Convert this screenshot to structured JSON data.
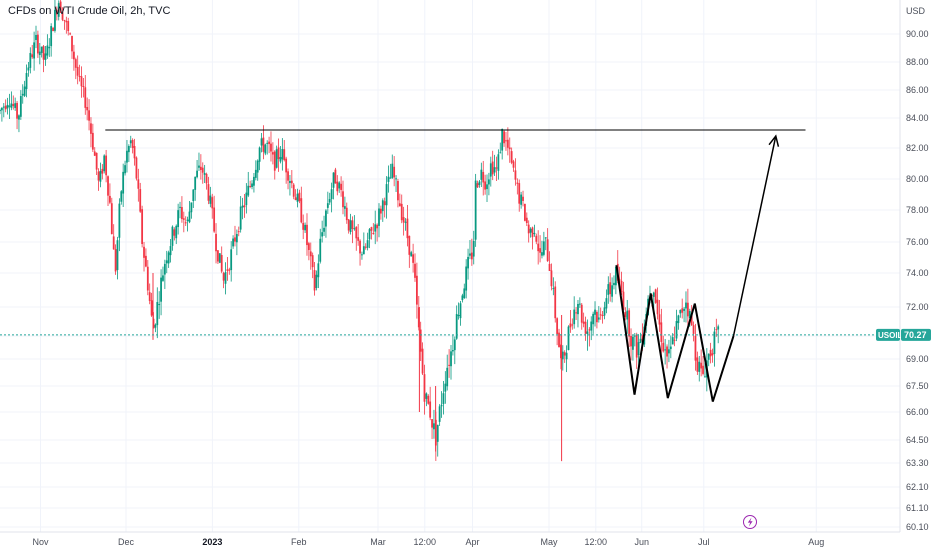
{
  "chart_data": {
    "type": "candlestick",
    "title": "CFDs on WTI Crude Oil, 2h, TVC",
    "currency": "USD",
    "y_ticks": [
      60.1,
      61.1,
      62.1,
      63.3,
      64.5,
      66.0,
      67.5,
      69.0,
      70.2,
      72.0,
      74.0,
      76.0,
      78.0,
      80.0,
      82.0,
      84.0,
      86.0,
      88.0,
      90.0
    ],
    "y_tick_labels": [
      "60.10",
      "61.10",
      "62.10",
      "63.30",
      "64.50",
      "66.00",
      "67.50",
      "69.00",
      "70.20",
      "72.00",
      "74.00",
      "76.00",
      "78.00",
      "80.00",
      "82.00",
      "84.00",
      "86.00",
      "88.00",
      "90.00"
    ],
    "x_labels": [
      {
        "label": "Nov",
        "pos": 0.045,
        "bold": false
      },
      {
        "label": "Dec",
        "pos": 0.14,
        "bold": false
      },
      {
        "label": "2023",
        "pos": 0.236,
        "bold": true
      },
      {
        "label": "Feb",
        "pos": 0.332,
        "bold": false
      },
      {
        "label": "Mar",
        "pos": 0.42,
        "bold": false
      },
      {
        "label": "12:00",
        "pos": 0.472,
        "bold": false
      },
      {
        "label": "Apr",
        "pos": 0.525,
        "bold": false
      },
      {
        "label": "May",
        "pos": 0.61,
        "bold": false
      },
      {
        "label": "12:00",
        "pos": 0.662,
        "bold": false
      },
      {
        "label": "Jun",
        "pos": 0.713,
        "bold": false
      },
      {
        "label": "Jul",
        "pos": 0.782,
        "bold": false
      },
      {
        "label": "Aug",
        "pos": 0.907,
        "bold": false
      }
    ],
    "price_path": [
      [
        0.0,
        84.5
      ],
      [
        0.01,
        85.5
      ],
      [
        0.02,
        84.0
      ],
      [
        0.03,
        87.5
      ],
      [
        0.04,
        89.5
      ],
      [
        0.05,
        88.0
      ],
      [
        0.058,
        90.5
      ],
      [
        0.065,
        92.5
      ],
      [
        0.072,
        91.0
      ],
      [
        0.08,
        89.0
      ],
      [
        0.088,
        86.5
      ],
      [
        0.096,
        85.0
      ],
      [
        0.104,
        82.0
      ],
      [
        0.11,
        79.5
      ],
      [
        0.116,
        81.5
      ],
      [
        0.122,
        78.5
      ],
      [
        0.128,
        74.0
      ],
      [
        0.134,
        79.0
      ],
      [
        0.14,
        81.5
      ],
      [
        0.146,
        82.5
      ],
      [
        0.152,
        80.0
      ],
      [
        0.158,
        76.0
      ],
      [
        0.164,
        73.5
      ],
      [
        0.17,
        70.5
      ],
      [
        0.176,
        72.5
      ],
      [
        0.184,
        75.0
      ],
      [
        0.192,
        76.5
      ],
      [
        0.2,
        78.0
      ],
      [
        0.208,
        77.0
      ],
      [
        0.216,
        80.0
      ],
      [
        0.224,
        80.8
      ],
      [
        0.232,
        79.0
      ],
      [
        0.24,
        76.0
      ],
      [
        0.248,
        73.5
      ],
      [
        0.256,
        75.0
      ],
      [
        0.264,
        77.0
      ],
      [
        0.272,
        78.5
      ],
      [
        0.28,
        80.0
      ],
      [
        0.288,
        82.0
      ],
      [
        0.296,
        82.3
      ],
      [
        0.304,
        81.0
      ],
      [
        0.312,
        81.8
      ],
      [
        0.32,
        80.5
      ],
      [
        0.328,
        79.0
      ],
      [
        0.336,
        77.5
      ],
      [
        0.344,
        75.0
      ],
      [
        0.35,
        73.0
      ],
      [
        0.356,
        76.0
      ],
      [
        0.364,
        78.5
      ],
      [
        0.372,
        80.2
      ],
      [
        0.38,
        79.0
      ],
      [
        0.388,
        77.0
      ],
      [
        0.396,
        76.0
      ],
      [
        0.404,
        75.2
      ],
      [
        0.412,
        76.5
      ],
      [
        0.42,
        77.5
      ],
      [
        0.428,
        79.0
      ],
      [
        0.436,
        80.5
      ],
      [
        0.442,
        79.0
      ],
      [
        0.448,
        77.5
      ],
      [
        0.454,
        76.0
      ],
      [
        0.46,
        74.0
      ],
      [
        0.466,
        70.0
      ],
      [
        0.472,
        67.0
      ],
      [
        0.478,
        66.0
      ],
      [
        0.484,
        64.6
      ],
      [
        0.49,
        66.5
      ],
      [
        0.496,
        68.5
      ],
      [
        0.502,
        69.5
      ],
      [
        0.508,
        71.5
      ],
      [
        0.514,
        73.0
      ],
      [
        0.52,
        74.5
      ],
      [
        0.526,
        75.5
      ],
      [
        0.528,
        79.5
      ],
      [
        0.534,
        80.5
      ],
      [
        0.54,
        79.8
      ],
      [
        0.546,
        81.0
      ],
      [
        0.552,
        80.5
      ],
      [
        0.558,
        83.0
      ],
      [
        0.564,
        82.0
      ],
      [
        0.57,
        80.5
      ],
      [
        0.576,
        79.0
      ],
      [
        0.582,
        78.0
      ],
      [
        0.588,
        76.5
      ],
      [
        0.594,
        77.0
      ],
      [
        0.6,
        75.0
      ],
      [
        0.606,
        76.0
      ],
      [
        0.612,
        74.0
      ],
      [
        0.618,
        71.0
      ],
      [
        0.624,
        68.5
      ],
      [
        0.63,
        70.0
      ],
      [
        0.636,
        71.5
      ],
      [
        0.642,
        72.5
      ],
      [
        0.648,
        71.0
      ],
      [
        0.654,
        70.5
      ],
      [
        0.66,
        72.0
      ],
      [
        0.666,
        71.0
      ],
      [
        0.672,
        72.5
      ],
      [
        0.678,
        73.0
      ],
      [
        0.684,
        74.0
      ],
      [
        0.69,
        73.0
      ],
      [
        0.696,
        71.5
      ],
      [
        0.702,
        70.0
      ],
      [
        0.708,
        69.5
      ],
      [
        0.714,
        70.5
      ],
      [
        0.72,
        72.5
      ],
      [
        0.726,
        73.5
      ],
      [
        0.732,
        71.0
      ],
      [
        0.738,
        69.5
      ],
      [
        0.744,
        69.0
      ],
      [
        0.75,
        70.5
      ],
      [
        0.756,
        71.5
      ],
      [
        0.762,
        72.5
      ],
      [
        0.768,
        71.0
      ],
      [
        0.774,
        69.0
      ],
      [
        0.78,
        68.0
      ],
      [
        0.786,
        69.0
      ],
      [
        0.792,
        69.8
      ],
      [
        0.798,
        70.27
      ]
    ],
    "resistance_level": 83.2,
    "resistance_x": [
      0.117,
      0.895
    ],
    "pattern_path": [
      [
        0.685,
        74.5
      ],
      [
        0.705,
        67.0
      ],
      [
        0.723,
        72.8
      ],
      [
        0.742,
        66.8
      ],
      [
        0.772,
        72.2
      ],
      [
        0.792,
        66.6
      ],
      [
        0.815,
        70.2
      ]
    ],
    "projection": [
      [
        0.815,
        70.2
      ],
      [
        0.862,
        82.8
      ]
    ],
    "current_price": 70.27,
    "symbol": "USOIL",
    "price_label": "70.27",
    "colors": {
      "up": "#089981",
      "down": "#f23645",
      "grid": "#f0f3fa",
      "price_line": "#26a69a",
      "badge": "#26a69a",
      "axis_text": "#4a4e59",
      "drawing": "#000000",
      "event_icon": "#9c27b0"
    }
  }
}
